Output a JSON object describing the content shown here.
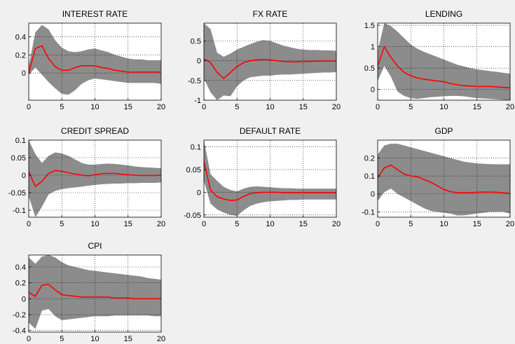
{
  "chart_data": [
    {
      "type": "area",
      "title": "INTEREST RATE",
      "xlim": [
        0,
        20
      ],
      "ylim": [
        -0.3,
        0.55
      ],
      "xticks": [
        0,
        5,
        10,
        15,
        20
      ],
      "yticks": [
        0,
        0.2,
        0.4
      ],
      "grid": true,
      "x": [
        0,
        1,
        2,
        3,
        4,
        5,
        6,
        7,
        8,
        9,
        10,
        11,
        12,
        13,
        14,
        15,
        16,
        17,
        18,
        19,
        20
      ],
      "series": [
        {
          "role": "median",
          "color": "#ff0000",
          "values": [
            0.0,
            0.27,
            0.3,
            0.16,
            0.07,
            0.03,
            0.03,
            0.06,
            0.08,
            0.08,
            0.08,
            0.06,
            0.05,
            0.03,
            0.02,
            0.01,
            0.01,
            0.01,
            0.01,
            0.01,
            0.01
          ]
        },
        {
          "role": "upper",
          "color": "#8c8c8c",
          "values": [
            0.08,
            0.45,
            0.53,
            0.48,
            0.36,
            0.28,
            0.24,
            0.23,
            0.24,
            0.26,
            0.27,
            0.25,
            0.23,
            0.2,
            0.18,
            0.16,
            0.15,
            0.15,
            0.14,
            0.14,
            0.14
          ]
        },
        {
          "role": "lower",
          "color": "#8c8c8c",
          "values": [
            -0.02,
            0.06,
            -0.02,
            -0.1,
            -0.17,
            -0.23,
            -0.24,
            -0.19,
            -0.12,
            -0.08,
            -0.06,
            -0.07,
            -0.08,
            -0.09,
            -0.1,
            -0.11,
            -0.11,
            -0.11,
            -0.11,
            -0.11,
            -0.12
          ]
        }
      ]
    },
    {
      "type": "area",
      "title": "FX RATE",
      "xlim": [
        0,
        20
      ],
      "ylim": [
        -1,
        0.95
      ],
      "xticks": [
        0,
        5,
        10,
        15,
        20
      ],
      "yticks": [
        -1,
        -0.5,
        0,
        0.5
      ],
      "grid": true,
      "x": [
        0,
        1,
        2,
        3,
        4,
        5,
        6,
        7,
        8,
        9,
        10,
        11,
        12,
        13,
        14,
        15,
        16,
        17,
        18,
        19,
        20
      ],
      "series": [
        {
          "role": "median",
          "color": "#ff0000",
          "values": [
            0.05,
            -0.05,
            -0.3,
            -0.45,
            -0.3,
            -0.15,
            -0.05,
            0.0,
            0.02,
            0.03,
            0.02,
            0.0,
            -0.02,
            -0.03,
            -0.03,
            -0.02,
            -0.02,
            -0.01,
            -0.01,
            -0.01,
            -0.01
          ]
        },
        {
          "role": "upper",
          "color": "#8c8c8c",
          "values": [
            0.95,
            0.8,
            0.2,
            0.1,
            0.18,
            0.28,
            0.35,
            0.42,
            0.48,
            0.52,
            0.5,
            0.44,
            0.38,
            0.34,
            0.3,
            0.28,
            0.27,
            0.27,
            0.26,
            0.26,
            0.25
          ]
        },
        {
          "role": "lower",
          "color": "#8c8c8c",
          "values": [
            -0.45,
            -0.8,
            -1.0,
            -0.88,
            -0.9,
            -0.65,
            -0.5,
            -0.42,
            -0.4,
            -0.38,
            -0.38,
            -0.36,
            -0.35,
            -0.35,
            -0.34,
            -0.33,
            -0.32,
            -0.31,
            -0.3,
            -0.3,
            -0.29
          ]
        }
      ]
    },
    {
      "type": "area",
      "title": "LENDING",
      "xlim": [
        0,
        20
      ],
      "ylim": [
        -0.25,
        1.55
      ],
      "xticks": [
        0,
        5,
        10,
        15,
        20
      ],
      "yticks": [
        0,
        0.5,
        1,
        1.5
      ],
      "grid": true,
      "x": [
        0,
        1,
        2,
        3,
        4,
        5,
        6,
        7,
        8,
        9,
        10,
        11,
        12,
        13,
        14,
        15,
        16,
        17,
        18,
        19,
        20
      ],
      "series": [
        {
          "role": "median",
          "color": "#ff0000",
          "values": [
            0.55,
            1.0,
            0.75,
            0.55,
            0.4,
            0.32,
            0.27,
            0.24,
            0.22,
            0.2,
            0.18,
            0.14,
            0.11,
            0.09,
            0.08,
            0.07,
            0.07,
            0.07,
            0.06,
            0.05,
            0.04
          ]
        },
        {
          "role": "upper",
          "color": "#8c8c8c",
          "values": [
            0.9,
            1.55,
            1.48,
            1.35,
            1.2,
            1.05,
            0.95,
            0.88,
            0.82,
            0.76,
            0.7,
            0.64,
            0.58,
            0.54,
            0.5,
            0.47,
            0.45,
            0.43,
            0.41,
            0.39,
            0.37
          ]
        },
        {
          "role": "lower",
          "color": "#8c8c8c",
          "values": [
            0.2,
            0.55,
            0.3,
            -0.05,
            -0.15,
            -0.2,
            -0.22,
            -0.2,
            -0.18,
            -0.17,
            -0.16,
            -0.15,
            -0.15,
            -0.16,
            -0.18,
            -0.2,
            -0.21,
            -0.22,
            -0.23,
            -0.24,
            -0.25
          ]
        }
      ]
    },
    {
      "type": "area",
      "title": "CREDIT SPREAD",
      "xlim": [
        0,
        20
      ],
      "ylim": [
        -0.12,
        0.1
      ],
      "xticks": [
        0,
        5,
        10,
        15,
        20
      ],
      "yticks": [
        -0.1,
        -0.05,
        0,
        0.05,
        0.1
      ],
      "grid": true,
      "x": [
        0,
        1,
        2,
        3,
        4,
        5,
        6,
        7,
        8,
        9,
        10,
        11,
        12,
        13,
        14,
        15,
        16,
        17,
        18,
        19,
        20
      ],
      "series": [
        {
          "role": "median",
          "color": "#ff0000",
          "values": [
            0.01,
            -0.032,
            -0.018,
            0.005,
            0.013,
            0.011,
            0.007,
            0.003,
            0.0,
            -0.002,
            0.001,
            0.004,
            0.005,
            0.005,
            0.003,
            0.001,
            0.0,
            -0.001,
            -0.001,
            -0.001,
            0.0
          ]
        },
        {
          "role": "upper",
          "color": "#8c8c8c",
          "values": [
            0.1,
            0.06,
            0.035,
            0.055,
            0.065,
            0.062,
            0.055,
            0.045,
            0.035,
            0.03,
            0.03,
            0.032,
            0.033,
            0.032,
            0.03,
            0.028,
            0.025,
            0.023,
            0.022,
            0.021,
            0.02
          ]
        },
        {
          "role": "lower",
          "color": "#8c8c8c",
          "values": [
            -0.06,
            -0.12,
            -0.09,
            -0.055,
            -0.045,
            -0.04,
            -0.037,
            -0.035,
            -0.033,
            -0.03,
            -0.028,
            -0.026,
            -0.025,
            -0.024,
            -0.024,
            -0.023,
            -0.023,
            -0.022,
            -0.022,
            -0.022,
            -0.021
          ]
        }
      ]
    },
    {
      "type": "area",
      "title": "DEFAULT RATE",
      "xlim": [
        0,
        20
      ],
      "ylim": [
        -0.055,
        0.115
      ],
      "xticks": [
        0,
        5,
        10,
        15,
        20
      ],
      "yticks": [
        -0.05,
        0,
        0.05,
        0.1
      ],
      "grid": true,
      "x": [
        0,
        1,
        2,
        3,
        4,
        5,
        6,
        7,
        8,
        9,
        10,
        11,
        12,
        13,
        14,
        15,
        16,
        17,
        18,
        19,
        20
      ],
      "series": [
        {
          "role": "median",
          "color": "#ff0000",
          "values": [
            0.068,
            0.005,
            -0.01,
            -0.015,
            -0.018,
            -0.017,
            -0.009,
            -0.003,
            -0.001,
            0.0,
            0.0,
            0.0,
            -0.001,
            -0.001,
            -0.001,
            -0.001,
            -0.001,
            -0.001,
            -0.001,
            -0.001,
            -0.001
          ]
        },
        {
          "role": "upper",
          "color": "#8c8c8c",
          "values": [
            0.115,
            0.04,
            0.025,
            0.012,
            0.005,
            0.002,
            0.008,
            0.012,
            0.013,
            0.012,
            0.011,
            0.01,
            0.009,
            0.009,
            0.008,
            0.008,
            0.008,
            0.008,
            0.008,
            0.008,
            0.008
          ]
        },
        {
          "role": "lower",
          "color": "#8c8c8c",
          "values": [
            0.025,
            -0.025,
            -0.038,
            -0.045,
            -0.05,
            -0.052,
            -0.04,
            -0.03,
            -0.025,
            -0.022,
            -0.02,
            -0.019,
            -0.018,
            -0.017,
            -0.017,
            -0.016,
            -0.016,
            -0.016,
            -0.016,
            -0.016,
            -0.016
          ]
        }
      ]
    },
    {
      "type": "area",
      "title": "GDP",
      "xlim": [
        0,
        20
      ],
      "ylim": [
        -0.13,
        0.3
      ],
      "xticks": [
        0,
        5,
        10,
        15,
        20
      ],
      "yticks": [
        -0.1,
        0,
        0.1,
        0.2
      ],
      "grid": true,
      "x": [
        0,
        1,
        2,
        3,
        4,
        5,
        6,
        7,
        8,
        9,
        10,
        11,
        12,
        13,
        14,
        15,
        16,
        17,
        18,
        19,
        20
      ],
      "series": [
        {
          "role": "median",
          "color": "#ff0000",
          "values": [
            0.09,
            0.145,
            0.16,
            0.135,
            0.11,
            0.1,
            0.095,
            0.08,
            0.065,
            0.045,
            0.025,
            0.012,
            0.007,
            0.006,
            0.007,
            0.009,
            0.01,
            0.01,
            0.009,
            0.006,
            0.002
          ]
        },
        {
          "role": "upper",
          "color": "#8c8c8c",
          "values": [
            0.22,
            0.27,
            0.28,
            0.28,
            0.27,
            0.26,
            0.25,
            0.24,
            0.23,
            0.22,
            0.21,
            0.2,
            0.19,
            0.18,
            0.175,
            0.17,
            0.168,
            0.166,
            0.165,
            0.165,
            0.165
          ]
        },
        {
          "role": "lower",
          "color": "#8c8c8c",
          "values": [
            -0.04,
            0.01,
            0.03,
            0.0,
            -0.02,
            -0.04,
            -0.06,
            -0.08,
            -0.095,
            -0.1,
            -0.105,
            -0.11,
            -0.12,
            -0.12,
            -0.115,
            -0.11,
            -0.105,
            -0.1,
            -0.1,
            -0.1,
            -0.11
          ]
        }
      ]
    },
    {
      "type": "area",
      "title": "CPI",
      "xlim": [
        0,
        20
      ],
      "ylim": [
        -0.42,
        0.55
      ],
      "xticks": [
        0,
        5,
        10,
        15,
        20
      ],
      "yticks": [
        -0.4,
        -0.2,
        0,
        0.2,
        0.4
      ],
      "grid": true,
      "x": [
        0,
        1,
        2,
        3,
        4,
        5,
        6,
        7,
        8,
        9,
        10,
        11,
        12,
        13,
        14,
        15,
        16,
        17,
        18,
        19,
        20
      ],
      "series": [
        {
          "role": "median",
          "color": "#ff0000",
          "values": [
            0.08,
            0.03,
            0.17,
            0.18,
            0.11,
            0.05,
            0.04,
            0.03,
            0.02,
            0.02,
            0.02,
            0.02,
            0.02,
            0.01,
            0.01,
            0.01,
            0.0,
            0.0,
            0.0,
            0.0,
            0.0
          ]
        },
        {
          "role": "upper",
          "color": "#8c8c8c",
          "values": [
            0.52,
            0.44,
            0.53,
            0.55,
            0.52,
            0.46,
            0.42,
            0.4,
            0.38,
            0.36,
            0.35,
            0.34,
            0.33,
            0.32,
            0.31,
            0.3,
            0.29,
            0.28,
            0.26,
            0.25,
            0.24
          ]
        },
        {
          "role": "lower",
          "color": "#8c8c8c",
          "values": [
            -0.3,
            -0.38,
            -0.15,
            -0.13,
            -0.22,
            -0.27,
            -0.26,
            -0.25,
            -0.24,
            -0.23,
            -0.22,
            -0.22,
            -0.22,
            -0.21,
            -0.21,
            -0.21,
            -0.21,
            -0.21,
            -0.21,
            -0.22,
            -0.22
          ]
        }
      ]
    }
  ]
}
